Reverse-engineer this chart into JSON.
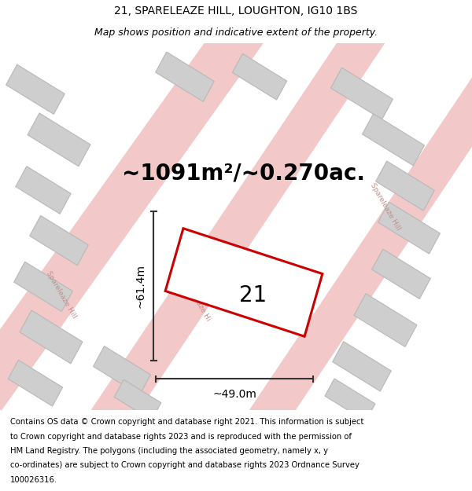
{
  "title_line1": "21, SPARELEAZE HILL, LOUGHTON, IG10 1BS",
  "title_line2": "Map shows position and indicative extent of the property.",
  "area_text": "~1091m²/~0.270ac.",
  "plot_number": "21",
  "dim_width": "~49.0m",
  "dim_height": "~61.4m",
  "footer_lines": [
    "Contains OS data © Crown copyright and database right 2021. This information is subject",
    "to Crown copyright and database rights 2023 and is reproduced with the permission of",
    "HM Land Registry. The polygons (including the associated geometry, namely x, y",
    "co-ordinates) are subject to Crown copyright and database rights 2023 Ordnance Survey",
    "100026316."
  ],
  "map_bg": "#f5eeee",
  "road_color": "#f2c8c8",
  "block_color": "#cecece",
  "block_edge_color": "#b8b8b8",
  "plot_fill": "#ffffff",
  "plot_edge": "#cc0000",
  "dim_color": "#333333",
  "road_label_color": "#c09090",
  "road_label_size": 6.5,
  "title_fontsize": 10,
  "subtitle_fontsize": 9,
  "area_fontsize": 20,
  "plot_num_fontsize": 20,
  "dim_fontsize": 10,
  "footer_fontsize": 7.2
}
